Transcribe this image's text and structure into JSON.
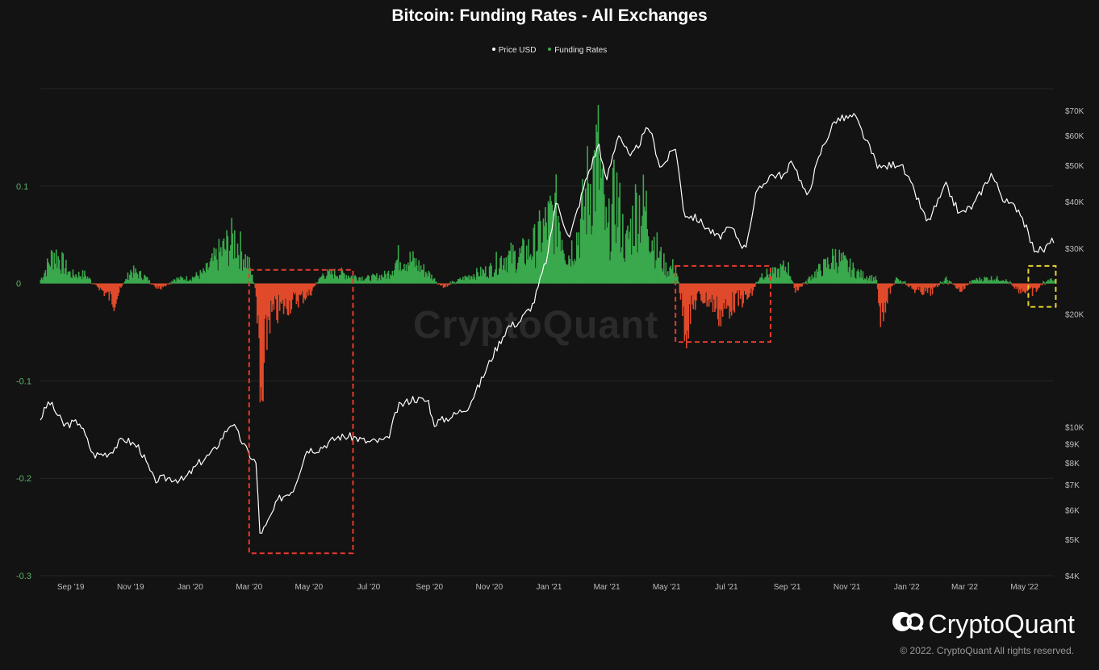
{
  "header": {
    "title": "Bitcoin: Funding Rates - All Exchanges"
  },
  "legend": {
    "price_label": "Price USD",
    "funding_label": "Funding Rates"
  },
  "watermark": "CryptoQuant",
  "branding": {
    "logo_text": "CryptoQuant",
    "copyright": "© 2022. CryptoQuant All rights reserved."
  },
  "colors": {
    "background": "#131313",
    "price": "#ffffff",
    "positive": "#3aa84c",
    "negative": "#e04a2b",
    "highlight_red": "#e53b2e",
    "highlight_yellow": "#e6d62a",
    "grid": "#262626",
    "left_axis": "#5fb36a"
  },
  "chart_data": {
    "type": "bar+line",
    "x_range": [
      "2019-08-01",
      "2022-05-31"
    ],
    "x_ticks": [
      "Sep '19",
      "Nov '19",
      "Jan '20",
      "Mar '20",
      "May '20",
      "Jul '20",
      "Sep '20",
      "Nov '20",
      "Jan '21",
      "Mar '21",
      "May '21",
      "Jul '21",
      "Sep '21",
      "Nov '21",
      "Jan '22",
      "Mar '22",
      "May '22"
    ],
    "y_left": {
      "label": "",
      "range": [
        -0.3,
        0.2
      ],
      "ticks": [
        "0.1",
        "0",
        "-0.1",
        "-0.2",
        "-0.3"
      ]
    },
    "y_right": {
      "label": "",
      "scale": "log",
      "range": [
        4000,
        80000
      ],
      "ticks": [
        "$70K",
        "$60K",
        "$50K",
        "$40K",
        "$30K",
        "$20K",
        "$10K",
        "$9K",
        "$8K",
        "$7K",
        "$6K",
        "$5K",
        "$4K"
      ]
    },
    "series": [
      {
        "name": "Price USD",
        "type": "line",
        "axis": "right",
        "points": [
          [
            "2019-08-01",
            10500
          ],
          [
            "2019-08-10",
            11700
          ],
          [
            "2019-08-25",
            10100
          ],
          [
            "2019-09-10",
            10300
          ],
          [
            "2019-09-24",
            8400
          ],
          [
            "2019-10-10",
            8500
          ],
          [
            "2019-10-25",
            9300
          ],
          [
            "2019-11-10",
            8800
          ],
          [
            "2019-11-25",
            7200
          ],
          [
            "2019-12-10",
            7300
          ],
          [
            "2019-12-25",
            7200
          ],
          [
            "2020-01-10",
            8000
          ],
          [
            "2020-01-25",
            8600
          ],
          [
            "2020-02-12",
            10300
          ],
          [
            "2020-02-28",
            8600
          ],
          [
            "2020-03-08",
            8000
          ],
          [
            "2020-03-12",
            5200
          ],
          [
            "2020-03-18",
            5400
          ],
          [
            "2020-03-31",
            6400
          ],
          [
            "2020-04-15",
            6800
          ],
          [
            "2020-04-29",
            8700
          ],
          [
            "2020-05-10",
            8700
          ],
          [
            "2020-05-31",
            9400
          ],
          [
            "2020-06-15",
            9400
          ],
          [
            "2020-06-30",
            9100
          ],
          [
            "2020-07-20",
            9200
          ],
          [
            "2020-07-31",
            11300
          ],
          [
            "2020-08-15",
            11900
          ],
          [
            "2020-08-31",
            11700
          ],
          [
            "2020-09-05",
            10200
          ],
          [
            "2020-09-25",
            10700
          ],
          [
            "2020-10-10",
            11300
          ],
          [
            "2020-10-21",
            12800
          ],
          [
            "2020-11-05",
            15600
          ],
          [
            "2020-11-20",
            18500
          ],
          [
            "2020-12-01",
            19000
          ],
          [
            "2020-12-16",
            21300
          ],
          [
            "2020-12-31",
            29000
          ],
          [
            "2021-01-08",
            40000
          ],
          [
            "2021-01-22",
            32000
          ],
          [
            "2021-02-08",
            46000
          ],
          [
            "2021-02-21",
            57000
          ],
          [
            "2021-02-28",
            45000
          ],
          [
            "2021-03-13",
            61000
          ],
          [
            "2021-03-25",
            52000
          ],
          [
            "2021-04-13",
            63500
          ],
          [
            "2021-04-25",
            49000
          ],
          [
            "2021-05-10",
            56000
          ],
          [
            "2021-05-19",
            37000
          ],
          [
            "2021-06-01",
            36000
          ],
          [
            "2021-06-22",
            32000
          ],
          [
            "2021-07-06",
            34000
          ],
          [
            "2021-07-20",
            29800
          ],
          [
            "2021-07-31",
            41500
          ],
          [
            "2021-08-14",
            47000
          ],
          [
            "2021-08-31",
            47000
          ],
          [
            "2021-09-06",
            52000
          ],
          [
            "2021-09-21",
            41000
          ],
          [
            "2021-10-06",
            55000
          ],
          [
            "2021-10-20",
            66000
          ],
          [
            "2021-11-09",
            67500
          ],
          [
            "2021-11-26",
            54000
          ],
          [
            "2021-12-04",
            49000
          ],
          [
            "2021-12-25",
            50800
          ],
          [
            "2022-01-10",
            41800
          ],
          [
            "2022-01-22",
            35000
          ],
          [
            "2022-02-10",
            44000
          ],
          [
            "2022-02-24",
            37000
          ],
          [
            "2022-03-10",
            39000
          ],
          [
            "2022-03-28",
            47500
          ],
          [
            "2022-04-11",
            40000
          ],
          [
            "2022-04-26",
            38000
          ],
          [
            "2022-05-10",
            30000
          ],
          [
            "2022-05-20",
            29500
          ],
          [
            "2022-05-31",
            31700
          ]
        ]
      },
      {
        "name": "Funding Rates",
        "type": "bar",
        "axis": "left",
        "points": [
          [
            "2019-08-01",
            0.004
          ],
          [
            "2019-08-15",
            0.035
          ],
          [
            "2019-09-01",
            0.01
          ],
          [
            "2019-09-15",
            0.01
          ],
          [
            "2019-10-01",
            -0.006
          ],
          [
            "2019-10-15",
            -0.02
          ],
          [
            "2019-11-01",
            0.014
          ],
          [
            "2019-11-15",
            0.008
          ],
          [
            "2019-12-01",
            -0.008
          ],
          [
            "2019-12-15",
            0.005
          ],
          [
            "2020-01-01",
            0.006
          ],
          [
            "2020-01-15",
            0.012
          ],
          [
            "2020-02-01",
            0.035
          ],
          [
            "2020-02-15",
            0.05
          ],
          [
            "2020-03-01",
            0.02
          ],
          [
            "2020-03-08",
            -0.01
          ],
          [
            "2020-03-13",
            -0.17
          ],
          [
            "2020-03-20",
            -0.04
          ],
          [
            "2020-04-01",
            -0.03
          ],
          [
            "2020-04-15",
            -0.02
          ],
          [
            "2020-05-01",
            -0.012
          ],
          [
            "2020-05-15",
            0.01
          ],
          [
            "2020-06-01",
            0.012
          ],
          [
            "2020-06-15",
            0.008
          ],
          [
            "2020-07-01",
            0.006
          ],
          [
            "2020-07-20",
            0.01
          ],
          [
            "2020-08-01",
            0.03
          ],
          [
            "2020-08-15",
            0.025
          ],
          [
            "2020-09-01",
            0.01
          ],
          [
            "2020-09-15",
            -0.005
          ],
          [
            "2020-10-01",
            0.004
          ],
          [
            "2020-10-15",
            0.01
          ],
          [
            "2020-11-01",
            0.015
          ],
          [
            "2020-11-15",
            0.03
          ],
          [
            "2020-12-01",
            0.03
          ],
          [
            "2020-12-15",
            0.04
          ],
          [
            "2021-01-01",
            0.07
          ],
          [
            "2021-01-10",
            0.08
          ],
          [
            "2021-01-20",
            0.03
          ],
          [
            "2021-02-01",
            0.06
          ],
          [
            "2021-02-10",
            0.11
          ],
          [
            "2021-02-20",
            0.14
          ],
          [
            "2021-03-01",
            0.05
          ],
          [
            "2021-03-10",
            0.1
          ],
          [
            "2021-03-20",
            0.04
          ],
          [
            "2021-04-01",
            0.09
          ],
          [
            "2021-04-10",
            0.08
          ],
          [
            "2021-04-20",
            0.04
          ],
          [
            "2021-05-01",
            0.015
          ],
          [
            "2021-05-10",
            0.02
          ],
          [
            "2021-05-20",
            -0.05
          ],
          [
            "2021-06-01",
            -0.015
          ],
          [
            "2021-06-15",
            -0.02
          ],
          [
            "2021-06-25",
            -0.035
          ],
          [
            "2021-07-10",
            -0.02
          ],
          [
            "2021-07-25",
            -0.015
          ],
          [
            "2021-08-05",
            0.01
          ],
          [
            "2021-08-20",
            0.012
          ],
          [
            "2021-09-01",
            0.02
          ],
          [
            "2021-09-10",
            -0.01
          ],
          [
            "2021-09-25",
            0.008
          ],
          [
            "2021-10-10",
            0.02
          ],
          [
            "2021-10-20",
            0.03
          ],
          [
            "2021-11-01",
            0.02
          ],
          [
            "2021-11-15",
            0.01
          ],
          [
            "2021-12-01",
            0.005
          ],
          [
            "2021-12-05",
            -0.035
          ],
          [
            "2021-12-20",
            0.006
          ],
          [
            "2022-01-10",
            -0.008
          ],
          [
            "2022-01-25",
            -0.01
          ],
          [
            "2022-02-10",
            0.005
          ],
          [
            "2022-02-25",
            -0.008
          ],
          [
            "2022-03-10",
            0.004
          ],
          [
            "2022-03-25",
            0.006
          ],
          [
            "2022-04-10",
            0.005
          ],
          [
            "2022-04-25",
            -0.007
          ],
          [
            "2022-05-10",
            -0.01
          ],
          [
            "2022-05-25",
            0.004
          ]
        ]
      }
    ],
    "annotations": [
      {
        "type": "dashed-box",
        "color": "red",
        "x_range": [
          "2020-03-01",
          "2020-06-15"
        ],
        "y_range": [
          -0.277,
          0.014
        ]
      },
      {
        "type": "dashed-box",
        "color": "red",
        "x_range": [
          "2021-05-10",
          "2021-08-15"
        ],
        "y_range": [
          -0.06,
          0.018
        ]
      },
      {
        "type": "dashed-box",
        "color": "yellow",
        "x_range": [
          "2022-05-05",
          "2022-06-02"
        ],
        "y_range": [
          -0.024,
          0.018
        ]
      }
    ]
  }
}
